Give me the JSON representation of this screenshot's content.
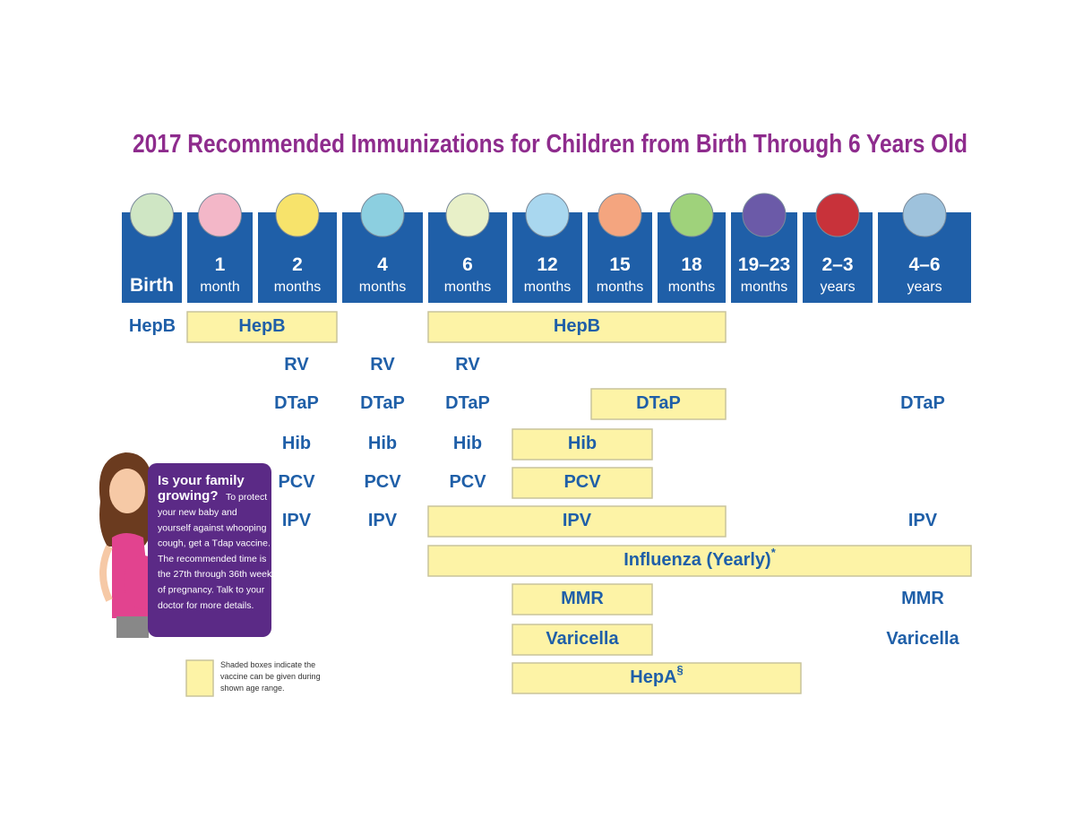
{
  "title": "2017 Recommended Immunizations for Children from Birth Through 6 Years Old",
  "columns": [
    {
      "number": "Birth"
    },
    {
      "number": "1",
      "unit": "month"
    },
    {
      "number": "2",
      "unit": "months"
    },
    {
      "number": "4",
      "unit": "months"
    },
    {
      "number": "6",
      "unit": "months"
    },
    {
      "number": "12",
      "unit": "months"
    },
    {
      "number": "15",
      "unit": "months"
    },
    {
      "number": "18",
      "unit": "months"
    },
    {
      "number": "19–23",
      "unit": "months"
    },
    {
      "number": "2–3",
      "unit": "years"
    },
    {
      "number": "4–6",
      "unit": "years"
    }
  ],
  "rows": [
    {
      "items": [
        {
          "text": "HepB"
        },
        {
          "text": "HepB",
          "shaded": true
        },
        {
          "text": "HepB",
          "shaded": true
        }
      ]
    },
    {
      "items": [
        {
          "text": "RV"
        },
        {
          "text": "RV"
        },
        {
          "text": "RV"
        }
      ]
    },
    {
      "items": [
        {
          "text": "DTaP"
        },
        {
          "text": "DTaP"
        },
        {
          "text": "DTaP"
        },
        {
          "text": "DTaP",
          "shaded": true
        },
        {
          "text": "DTaP"
        }
      ]
    },
    {
      "items": [
        {
          "text": "Hib"
        },
        {
          "text": "Hib"
        },
        {
          "text": "Hib"
        },
        {
          "text": "Hib",
          "shaded": true
        }
      ]
    },
    {
      "items": [
        {
          "text": "PCV"
        },
        {
          "text": "PCV"
        },
        {
          "text": "PCV"
        },
        {
          "text": "PCV",
          "shaded": true
        }
      ]
    },
    {
      "items": [
        {
          "text": "IPV"
        },
        {
          "text": "IPV"
        },
        {
          "text": "IPV",
          "shaded": true
        },
        {
          "text": "IPV"
        }
      ]
    },
    {
      "items": [
        {
          "text": "Influenza (Yearly)",
          "note": "*",
          "shaded": true
        }
      ]
    },
    {
      "items": [
        {
          "text": "MMR",
          "shaded": true
        },
        {
          "text": "MMR"
        }
      ]
    },
    {
      "items": [
        {
          "text": "Varicella",
          "shaded": true
        },
        {
          "text": "Varicella"
        }
      ]
    },
    {
      "items": [
        {
          "text": "HepA",
          "note": "§",
          "shaded": true
        }
      ]
    }
  ],
  "callout": {
    "heading_lines": [
      "Is your family",
      "growing?"
    ],
    "body_lines": [
      "To protect",
      "your new baby and",
      "yourself against whooping",
      "cough, get a Tdap vaccine.",
      "The recommended time is",
      "the 27th through 36th week",
      "of pregnancy. Talk to your",
      "doctor for more details."
    ]
  },
  "legend": {
    "lines": [
      "Shaded boxes indicate the",
      "vaccine can be given during",
      "shown age range."
    ]
  }
}
